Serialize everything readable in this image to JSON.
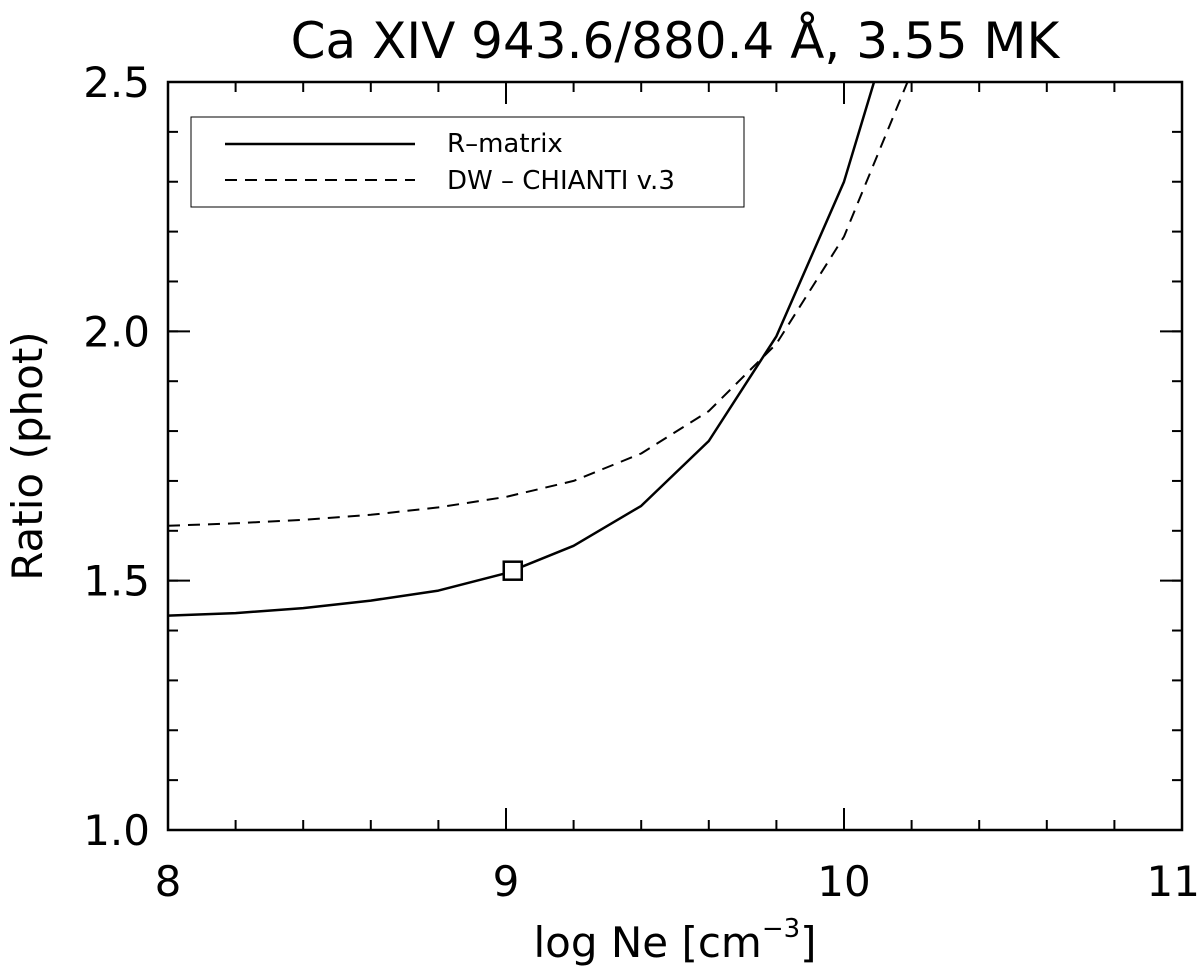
{
  "chart_data": {
    "type": "line",
    "title": "Ca XIV 943.6/880.4 Å, 3.55 MK",
    "xlabel": "log Ne [cm",
    "xlabel_exponent": "−3",
    "xlabel_suffix": "]",
    "ylabel": "Ratio (phot)",
    "xlim": [
      8,
      11
    ],
    "ylim": [
      1.0,
      2.5
    ],
    "x_major_ticks": [
      8,
      9,
      10,
      11
    ],
    "x_tick_labels": [
      "8",
      "9",
      "10",
      "11"
    ],
    "x_minor_step": 0.2,
    "y_major_ticks": [
      1.0,
      1.5,
      2.0,
      2.5
    ],
    "y_tick_labels": [
      "1.0",
      "1.5",
      "2.0",
      "2.5"
    ],
    "y_minor_step": 0.1,
    "grid": false,
    "legend_position": "top-left",
    "series": [
      {
        "name": "R–matrix",
        "style": "solid",
        "x": [
          8.0,
          8.2,
          8.4,
          8.6,
          8.8,
          9.0,
          9.2,
          9.4,
          9.6,
          9.8,
          10.0,
          10.2
        ],
        "y": [
          1.43,
          1.435,
          1.445,
          1.46,
          1.48,
          1.515,
          1.57,
          1.65,
          1.78,
          1.99,
          2.3,
          2.75
        ]
      },
      {
        "name": "DW – CHIANTI v.3",
        "style": "dashed",
        "x": [
          8.0,
          8.2,
          8.4,
          8.6,
          8.8,
          9.0,
          9.2,
          9.4,
          9.6,
          9.8,
          10.0,
          10.2
        ],
        "y": [
          1.61,
          1.615,
          1.622,
          1.632,
          1.647,
          1.668,
          1.7,
          1.755,
          1.84,
          1.975,
          2.19,
          2.52
        ]
      }
    ],
    "marker": {
      "shape": "square",
      "x": 9.02,
      "y": 1.52
    }
  }
}
